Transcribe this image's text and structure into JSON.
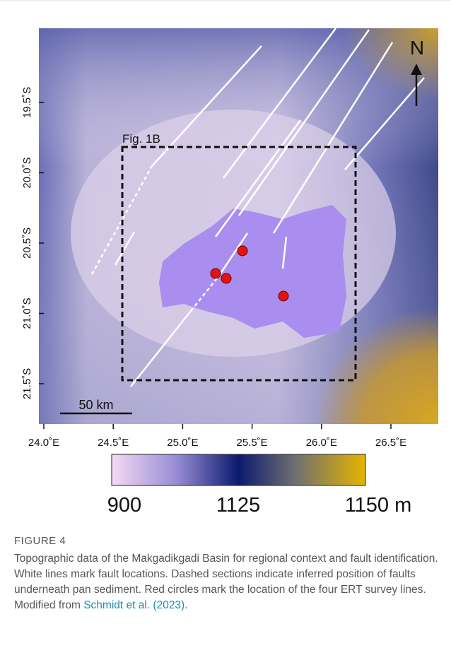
{
  "figure": {
    "x_ticks": [
      "24.0˚E",
      "24.5˚E",
      "25.0˚E",
      "25.5˚E",
      "26.0˚E",
      "26.5˚E"
    ],
    "y_ticks": [
      "19.5˚S",
      "20.0˚S",
      "20.5˚S",
      "21.0˚S",
      "21.5˚S"
    ],
    "inset_label": "Fig. 1B",
    "north": "N",
    "scale": "50 km",
    "colorbar_labels": [
      "900",
      "1125",
      "1150 m"
    ]
  },
  "caption": {
    "title": "FIGURE 4",
    "text": "Topographic data of the Makgadikgadi Basin for regional context and fault identification. White lines mark fault locations. Dashed sections indicate inferred position of faults underneath pan sediment. Red circles mark the location of the four ERT survey lines. Modified from ",
    "link": "Schmidt et al. (2023)",
    "end": "."
  }
}
